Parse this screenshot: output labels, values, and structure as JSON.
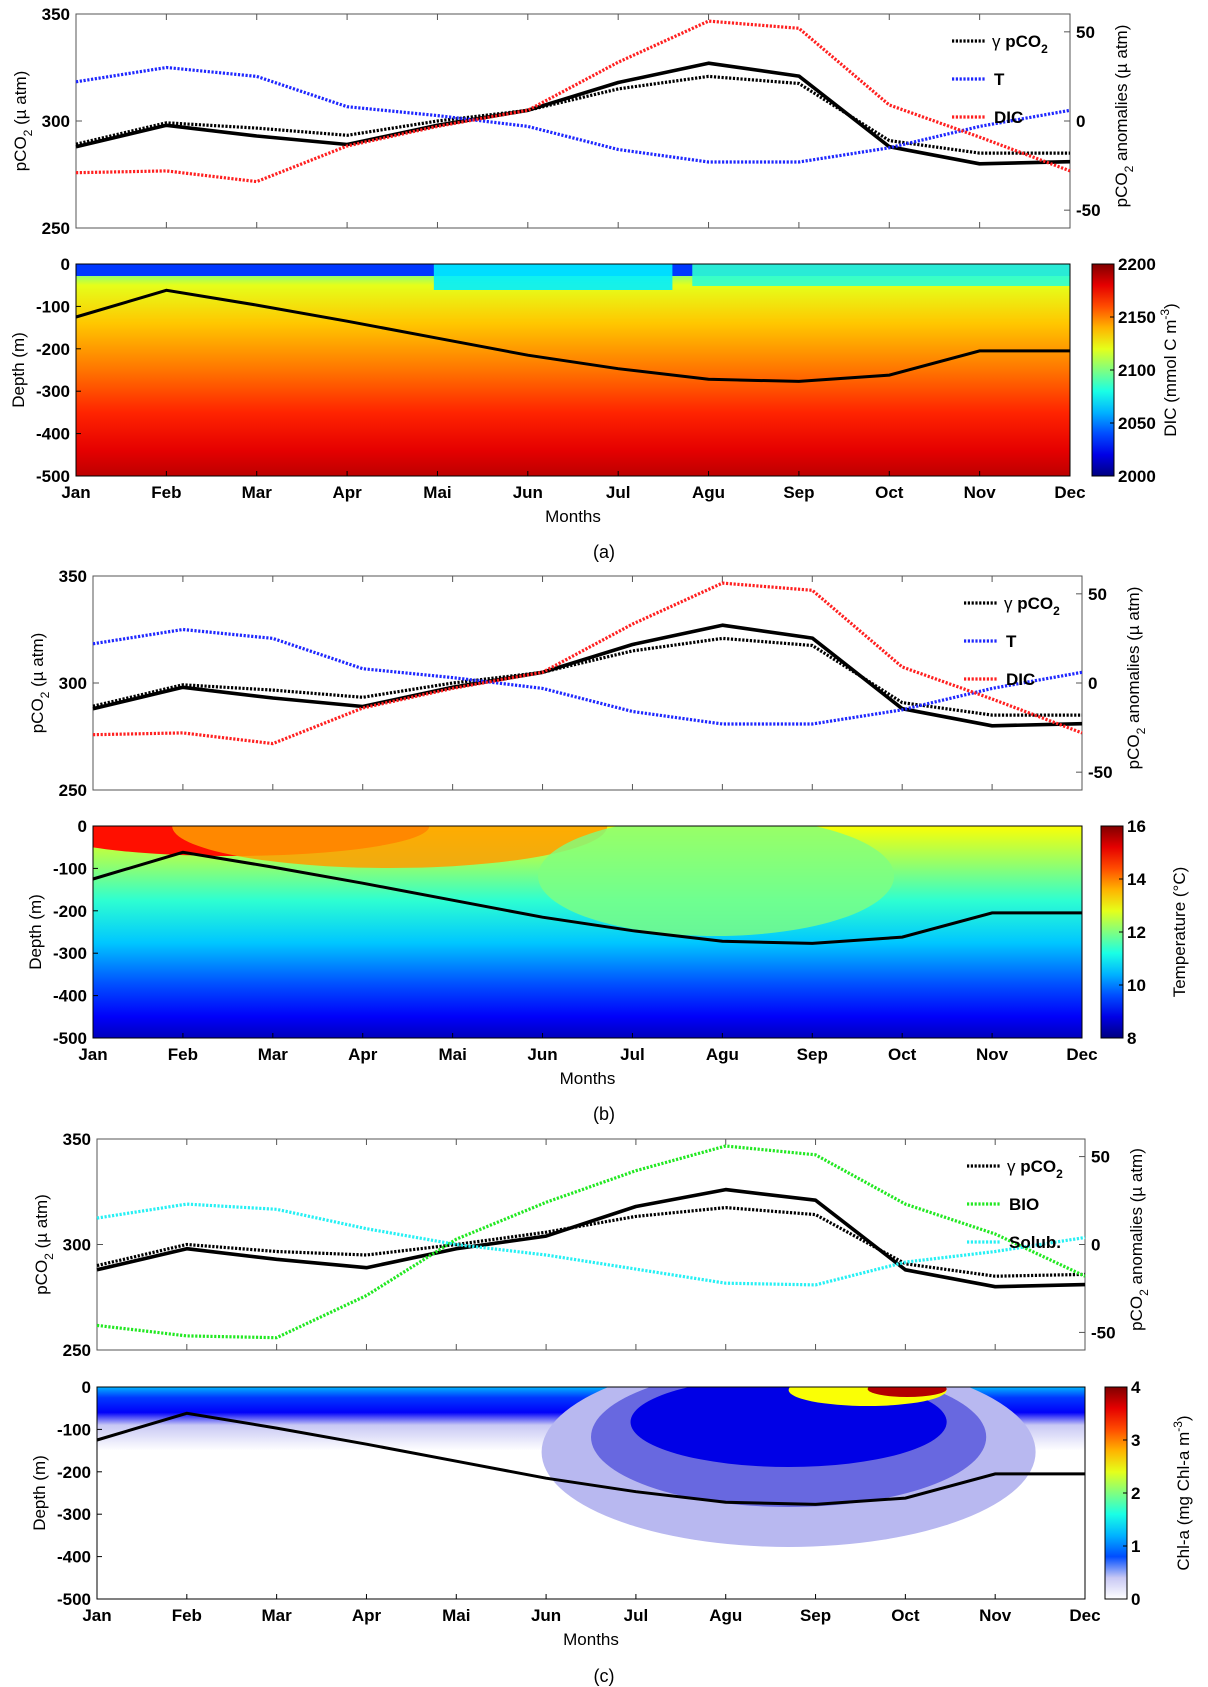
{
  "colors": {
    "gamma": "#000000",
    "observed": "#000000",
    "T": "#1f28ff",
    "DIC": "#ff2020",
    "BIO": "#22e822",
    "Solub": "#26f0f4"
  },
  "months": [
    "Jan",
    "Feb",
    "Mar",
    "Apr",
    "Mai",
    "Jun",
    "Jul",
    "Agu",
    "Sep",
    "Oct",
    "Nov",
    "Dec"
  ],
  "chart_data": [
    {
      "type": "line",
      "panel": "a-top",
      "xlabel": "",
      "ylabel_left": "pCO2 (µ atm)",
      "ylabel_right": "pCO2 anomalies (µ atm)",
      "ylim_left": [
        250,
        350
      ],
      "ylim_right": [
        -60,
        60
      ],
      "yticks_left": [
        250,
        300,
        350
      ],
      "yticks_right": [
        -50,
        0,
        50
      ],
      "categories": [
        "Jan",
        "Feb",
        "Mar",
        "Apr",
        "Mai",
        "Jun",
        "Jul",
        "Agu",
        "Sep",
        "Oct",
        "Nov",
        "Dec"
      ],
      "series": [
        {
          "key": "observed",
          "axis": "left",
          "style": "solid",
          "values": [
            288,
            298,
            293,
            289,
            298,
            305,
            318,
            327,
            321,
            288,
            280,
            281
          ]
        },
        {
          "key": "gamma",
          "name": "γ pCO2",
          "axis": "right",
          "style": "dotted",
          "values": [
            -13,
            -1,
            -4,
            -8,
            0,
            6,
            18,
            25,
            21,
            -11,
            -18,
            -18
          ]
        },
        {
          "key": "T",
          "name": "T",
          "axis": "right",
          "style": "dotted",
          "values": [
            22,
            30,
            25,
            8,
            3,
            -3,
            -16,
            -23,
            -23,
            -15,
            -3,
            6
          ]
        },
        {
          "key": "DIC",
          "name": "DIC",
          "axis": "right",
          "style": "dotted",
          "values": [
            -29,
            -28,
            -34,
            -14,
            -3,
            6,
            33,
            56,
            52,
            9,
            -9,
            -28
          ]
        }
      ],
      "legend": "top-right"
    },
    {
      "type": "heatmap",
      "panel": "a-bottom",
      "xlabel": "Months",
      "ylabel": "Depth (m)",
      "yticks": [
        0,
        -100,
        -200,
        -300,
        -400,
        -500
      ],
      "colorbar_label": "DIC (mmol C m-3)",
      "colorbar_ticks": [
        2000,
        2050,
        2100,
        2150,
        2200
      ],
      "colorbar_range": [
        2000,
        2200
      ],
      "mld_line": [
        -125,
        -62,
        -97,
        -135,
        -175,
        -215,
        -247,
        -272,
        -277,
        -262,
        -205,
        -205
      ]
    },
    {
      "type": "line",
      "panel": "b-top",
      "ylabel_left": "pCO2 (µ atm)",
      "ylabel_right": "pCO2 anomalies (µ atm)",
      "ylim_left": [
        250,
        350
      ],
      "ylim_right": [
        -60,
        60
      ],
      "yticks_left": [
        250,
        300,
        350
      ],
      "yticks_right": [
        -50,
        0,
        50
      ],
      "categories": [
        "Jan",
        "Feb",
        "Mar",
        "Apr",
        "Mai",
        "Jun",
        "Jul",
        "Agu",
        "Sep",
        "Oct",
        "Nov",
        "Dec"
      ],
      "series": [
        {
          "key": "observed",
          "axis": "left",
          "style": "solid",
          "values": [
            288,
            298,
            293,
            289,
            298,
            305,
            318,
            327,
            321,
            288,
            280,
            281
          ]
        },
        {
          "key": "gamma",
          "name": "γ pCO2",
          "axis": "right",
          "style": "dotted",
          "values": [
            -13,
            -1,
            -4,
            -8,
            0,
            6,
            18,
            25,
            21,
            -11,
            -18,
            -18
          ]
        },
        {
          "key": "T",
          "name": "T",
          "axis": "right",
          "style": "dotted",
          "values": [
            22,
            30,
            25,
            8,
            3,
            -3,
            -16,
            -23,
            -23,
            -15,
            -3,
            6
          ]
        },
        {
          "key": "DIC",
          "name": "DIC",
          "axis": "right",
          "style": "dotted",
          "values": [
            -29,
            -28,
            -34,
            -14,
            -3,
            6,
            33,
            56,
            52,
            9,
            -9,
            -28
          ]
        }
      ],
      "legend": "top-right"
    },
    {
      "type": "heatmap",
      "panel": "b-bottom",
      "xlabel": "Months",
      "ylabel": "Depth (m)",
      "yticks": [
        0,
        -100,
        -200,
        -300,
        -400,
        -500
      ],
      "colorbar_label": "Temperature (°C)",
      "colorbar_ticks": [
        8,
        10,
        12,
        14,
        16
      ],
      "colorbar_range": [
        8,
        16
      ],
      "mld_line": [
        -125,
        -62,
        -97,
        -135,
        -175,
        -215,
        -247,
        -272,
        -277,
        -262,
        -205,
        -205
      ]
    },
    {
      "type": "line",
      "panel": "c-top",
      "ylabel_left": "pCO2 (µ atm)",
      "ylabel_right": "pCO2 anomalies (µ atm)",
      "ylim_left": [
        250,
        350
      ],
      "ylim_right": [
        -60,
        60
      ],
      "yticks_left": [
        250,
        300,
        350
      ],
      "yticks_right": [
        -50,
        0,
        50
      ],
      "categories": [
        "Jan",
        "Feb",
        "Mar",
        "Apr",
        "Mai",
        "Jun",
        "Jul",
        "Agu",
        "Sep",
        "Oct",
        "Nov",
        "Dec"
      ],
      "series": [
        {
          "key": "observed",
          "axis": "left",
          "style": "solid",
          "values": [
            288,
            298,
            293,
            289,
            298,
            304,
            318,
            326,
            321,
            288,
            280,
            281
          ]
        },
        {
          "key": "gamma",
          "name": "γ pCO2",
          "axis": "right",
          "style": "dotted",
          "values": [
            -12,
            0,
            -4,
            -6,
            0,
            7,
            16,
            21,
            17,
            -11,
            -18,
            -17
          ]
        },
        {
          "key": "BIO",
          "name": "BIO",
          "axis": "right",
          "style": "dotted",
          "values": [
            -46,
            -52,
            -53,
            -29,
            3,
            24,
            42,
            56,
            51,
            23,
            6,
            -18
          ]
        },
        {
          "key": "Solub",
          "name": "Solub.",
          "axis": "right",
          "style": "dotted",
          "values": [
            15,
            23,
            20,
            9,
            0,
            -6,
            -14,
            -22,
            -23,
            -10,
            -4,
            4
          ]
        }
      ],
      "legend": "top-right"
    },
    {
      "type": "heatmap",
      "panel": "c-bottom",
      "xlabel": "Months",
      "ylabel": "Depth (m)",
      "yticks": [
        0,
        -100,
        -200,
        -300,
        -400,
        -500
      ],
      "colorbar_label": "Chl-a (mg Chl-a m-3)",
      "colorbar_ticks": [
        0,
        1,
        2,
        3,
        4
      ],
      "colorbar_range": [
        0,
        4
      ],
      "mld_line": [
        -125,
        -62,
        -97,
        -135,
        -175,
        -215,
        -247,
        -272,
        -277,
        -262,
        -205,
        -205
      ]
    }
  ],
  "captions": [
    "(a)",
    "(b)",
    "(c)"
  ]
}
